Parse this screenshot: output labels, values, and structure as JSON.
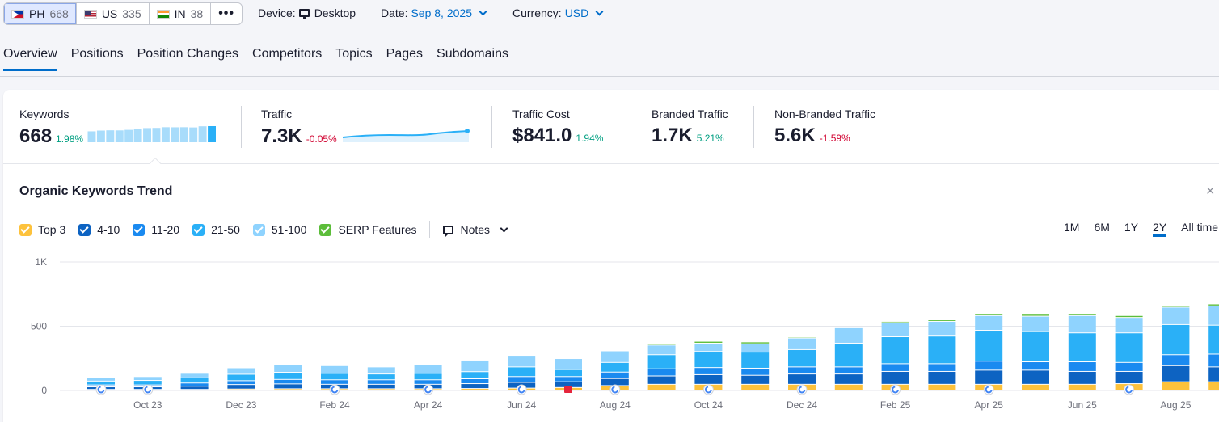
{
  "databases": [
    {
      "code": "PH",
      "count": "668",
      "flag": "flag-ph-icon"
    },
    {
      "code": "US",
      "count": "335",
      "flag": "flag-us-icon"
    },
    {
      "code": "IN",
      "count": "38",
      "flag": "flag-in-icon"
    }
  ],
  "more_label": "•••",
  "filters": {
    "device_label": "Device:",
    "device_value": "Desktop",
    "date_label": "Date:",
    "date_value": "Sep 8, 2025",
    "currency_label": "Currency:",
    "currency_value": "USD"
  },
  "tabs": [
    "Overview",
    "Positions",
    "Position Changes",
    "Competitors",
    "Topics",
    "Pages",
    "Subdomains"
  ],
  "metrics": [
    {
      "label": "Keywords",
      "value": "668",
      "delta": "1.98%",
      "trend": "up"
    },
    {
      "label": "Traffic",
      "value": "7.3K",
      "delta": "-0.05%",
      "trend": "down"
    },
    {
      "label": "Traffic Cost",
      "value": "$841.0",
      "delta": "1.94%",
      "trend": "up"
    },
    {
      "label": "Branded Traffic",
      "value": "1.7K",
      "delta": "5.21%",
      "trend": "up"
    },
    {
      "label": "Non-Branded Traffic",
      "value": "5.6K",
      "delta": "-1.59%",
      "trend": "down"
    }
  ],
  "trend_title": "Organic Keywords Trend",
  "close_label": "×",
  "legend": [
    {
      "label": "Top 3",
      "color": "#fdc23c"
    },
    {
      "label": "4-10",
      "color": "#0d63c2"
    },
    {
      "label": "11-20",
      "color": "#1a8af0"
    },
    {
      "label": "21-50",
      "color": "#2ab0f7"
    },
    {
      "label": "51-100",
      "color": "#8fd3fe"
    },
    {
      "label": "SERP Features",
      "color": "#5cbd3a"
    }
  ],
  "notes_label": "Notes",
  "ranges": [
    "1M",
    "6M",
    "1Y",
    "2Y",
    "All time"
  ],
  "active_range": "2Y",
  "chart_data": {
    "type": "bar",
    "stacked": true,
    "y_ticks": [
      "0",
      "500",
      "1K"
    ],
    "ylim": [
      0,
      1000
    ],
    "x_tick_labels": [
      "Oct 23",
      "Dec 23",
      "Feb 24",
      "Apr 24",
      "Jun 24",
      "Aug 24",
      "Oct 24",
      "Dec 24",
      "Feb 25",
      "Apr 25",
      "Jun 25",
      "Aug 25"
    ],
    "categories": [
      "Sep 23",
      "Oct 23",
      "Nov 23",
      "Dec 23",
      "Jan 24",
      "Feb 24",
      "Mar 24",
      "Apr 24",
      "May 24",
      "Jun 24",
      "Jul 24",
      "Aug 24",
      "Sep 24",
      "Oct 24",
      "Nov 24",
      "Dec 24",
      "Jan 25",
      "Feb 25",
      "Mar 25",
      "Apr 25",
      "May 25",
      "Jun 25",
      "Jul 25",
      "Aug 25",
      "Sep 25"
    ],
    "series": [
      {
        "name": "Top 3",
        "values": [
          5,
          5,
          5,
          8,
          10,
          10,
          10,
          10,
          12,
          15,
          20,
          35,
          45,
          45,
          45,
          45,
          45,
          45,
          45,
          45,
          45,
          45,
          50,
          65,
          65
        ]
      },
      {
        "name": "4-10",
        "values": [
          20,
          20,
          25,
          35,
          38,
          35,
          35,
          35,
          38,
          45,
          45,
          55,
          65,
          75,
          70,
          80,
          80,
          100,
          100,
          110,
          110,
          100,
          95,
          125,
          115
        ]
      },
      {
        "name": "11-20",
        "values": [
          15,
          15,
          25,
          30,
          35,
          35,
          35,
          35,
          38,
          45,
          40,
          50,
          55,
          55,
          55,
          55,
          55,
          60,
          60,
          70,
          65,
          75,
          70,
          85,
          100
        ]
      },
      {
        "name": "21-50",
        "values": [
          30,
          35,
          40,
          50,
          55,
          50,
          45,
          50,
          55,
          75,
          55,
          75,
          110,
          125,
          125,
          135,
          185,
          210,
          215,
          240,
          235,
          225,
          230,
          235,
          225
        ]
      },
      {
        "name": "51-100",
        "values": [
          30,
          30,
          35,
          50,
          60,
          60,
          55,
          70,
          90,
          90,
          85,
          90,
          75,
          65,
          65,
          90,
          120,
          110,
          115,
          115,
          120,
          135,
          120,
          135,
          150
        ]
      },
      {
        "name": "SERP Features",
        "values": [
          0,
          0,
          0,
          0,
          0,
          0,
          0,
          0,
          0,
          0,
          0,
          5,
          12,
          15,
          15,
          8,
          8,
          10,
          12,
          15,
          15,
          15,
          15,
          15,
          15
        ]
      }
    ],
    "note_markers": [
      "G",
      "G",
      "G",
      "G",
      "G",
      "N",
      "G",
      "G",
      "G",
      "G",
      "G",
      "G"
    ]
  }
}
